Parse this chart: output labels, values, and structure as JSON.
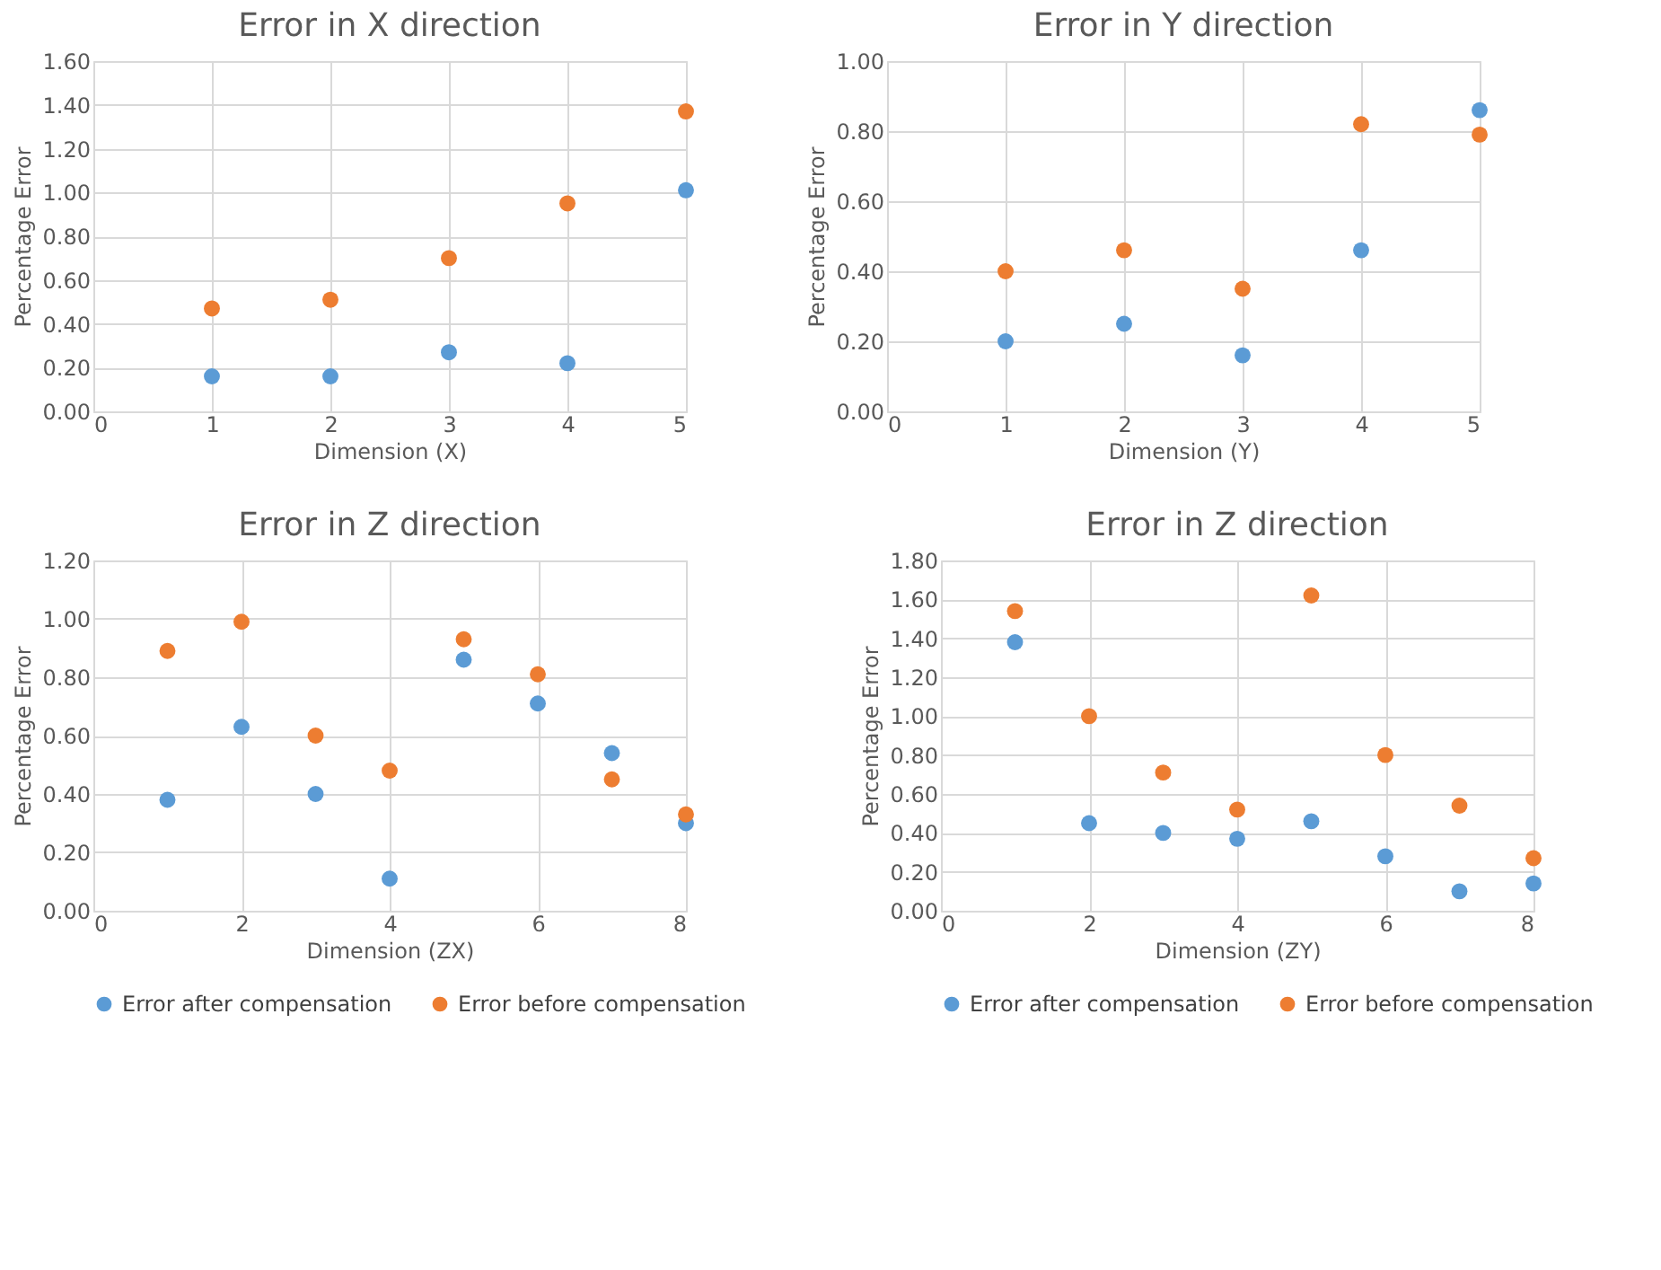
{
  "chart_data": [
    {
      "type": "scatter",
      "title": "Error in X direction",
      "xlabel": "Dimension (X)",
      "ylabel": "Percentage Error",
      "x": [
        1,
        2,
        3,
        4,
        5
      ],
      "series": [
        {
          "color": "#5b9bd5",
          "values": [
            0.16,
            0.16,
            0.27,
            0.22,
            1.01
          ]
        },
        {
          "color": "#ed7d31",
          "values": [
            0.47,
            0.51,
            0.7,
            0.95,
            1.37
          ]
        }
      ],
      "xlim": [
        0,
        5
      ],
      "xticks": [
        0,
        1,
        2,
        3,
        4,
        5
      ],
      "ylim": [
        0,
        1.6
      ],
      "yticks": [
        {
          "value": 0,
          "label": "0.00"
        },
        {
          "value": 0.2,
          "label": "0.20"
        },
        {
          "value": 0.4,
          "label": "0.40"
        },
        {
          "value": 0.6,
          "label": "0.60"
        },
        {
          "value": 0.8,
          "label": "0.80"
        },
        {
          "value": 1.0,
          "label": "1.00"
        },
        {
          "value": 1.2,
          "label": "1.20"
        },
        {
          "value": 1.4,
          "label": "1.40"
        },
        {
          "value": 1.6,
          "label": "1.60"
        }
      ],
      "grid": true,
      "marker": "circle",
      "legend": false
    },
    {
      "type": "scatter",
      "title": "Error in Y direction",
      "xlabel": "Dimension (Y)",
      "ylabel": "Percentage Error",
      "x": [
        1,
        2,
        3,
        4,
        5
      ],
      "series": [
        {
          "color": "#5b9bd5",
          "values": [
            0.2,
            0.25,
            0.16,
            0.46,
            0.86
          ]
        },
        {
          "color": "#ed7d31",
          "values": [
            0.4,
            0.46,
            0.35,
            0.82,
            0.79
          ]
        }
      ],
      "xlim": [
        0,
        5
      ],
      "xticks": [
        0,
        1,
        2,
        3,
        4,
        5
      ],
      "ylim": [
        0,
        1.0
      ],
      "yticks": [
        {
          "value": 0,
          "label": "0.00"
        },
        {
          "value": 0.2,
          "label": "0.20"
        },
        {
          "value": 0.4,
          "label": "0.40"
        },
        {
          "value": 0.6,
          "label": "0.60"
        },
        {
          "value": 0.8,
          "label": "0.80"
        },
        {
          "value": 1.0,
          "label": "1.00"
        }
      ],
      "grid": true,
      "marker": "circle",
      "legend": false
    },
    {
      "type": "scatter",
      "title": "Error in Z direction",
      "xlabel": "Dimension (ZX)",
      "ylabel": "Percentage Error",
      "x": [
        1,
        2,
        3,
        4,
        5,
        6,
        7,
        8
      ],
      "series": [
        {
          "name": "Error after compensation",
          "color": "#5b9bd5",
          "values": [
            0.38,
            0.63,
            0.4,
            0.11,
            0.86,
            0.71,
            0.54,
            0.3
          ]
        },
        {
          "name": "Error before compensation",
          "color": "#ed7d31",
          "values": [
            0.89,
            0.99,
            0.6,
            0.48,
            0.93,
            0.81,
            0.45,
            0.33
          ]
        }
      ],
      "xlim": [
        0,
        8
      ],
      "xticks": [
        0,
        2,
        4,
        6,
        8
      ],
      "ylim": [
        0,
        1.2
      ],
      "yticks": [
        {
          "value": 0,
          "label": "0.00"
        },
        {
          "value": 0.2,
          "label": "0.20"
        },
        {
          "value": 0.4,
          "label": "0.40"
        },
        {
          "value": 0.6,
          "label": "0.60"
        },
        {
          "value": 0.8,
          "label": "0.80"
        },
        {
          "value": 1.0,
          "label": "1.00"
        },
        {
          "value": 1.2,
          "label": "1.20"
        }
      ],
      "grid": true,
      "marker": "circle",
      "legend": "bottom"
    },
    {
      "type": "scatter",
      "title": "Error in Z direction",
      "xlabel": "Dimension (ZY)",
      "ylabel": "Percentage Error",
      "x": [
        1,
        2,
        3,
        4,
        5,
        6,
        7,
        8
      ],
      "series": [
        {
          "name": "Error after compensation",
          "color": "#5b9bd5",
          "values": [
            1.38,
            0.45,
            0.4,
            0.37,
            0.46,
            0.28,
            0.1,
            0.14
          ]
        },
        {
          "name": "Error before compensation",
          "color": "#ed7d31",
          "values": [
            1.54,
            1.0,
            0.71,
            0.52,
            1.62,
            0.8,
            0.54,
            0.27
          ]
        }
      ],
      "xlim": [
        0,
        8
      ],
      "xticks": [
        0,
        2,
        4,
        6,
        8
      ],
      "ylim": [
        0,
        1.8
      ],
      "yticks": [
        {
          "value": 0,
          "label": "0.00"
        },
        {
          "value": 0.2,
          "label": "0.20"
        },
        {
          "value": 0.4,
          "label": "0.40"
        },
        {
          "value": 0.6,
          "label": "0.60"
        },
        {
          "value": 0.8,
          "label": "0.80"
        },
        {
          "value": 1.0,
          "label": "1.00"
        },
        {
          "value": 1.2,
          "label": "1.20"
        },
        {
          "value": 1.4,
          "label": "1.40"
        },
        {
          "value": 1.6,
          "label": "1.60"
        },
        {
          "value": 1.8,
          "label": "1.80"
        }
      ],
      "grid": true,
      "marker": "circle",
      "legend": "bottom"
    }
  ]
}
